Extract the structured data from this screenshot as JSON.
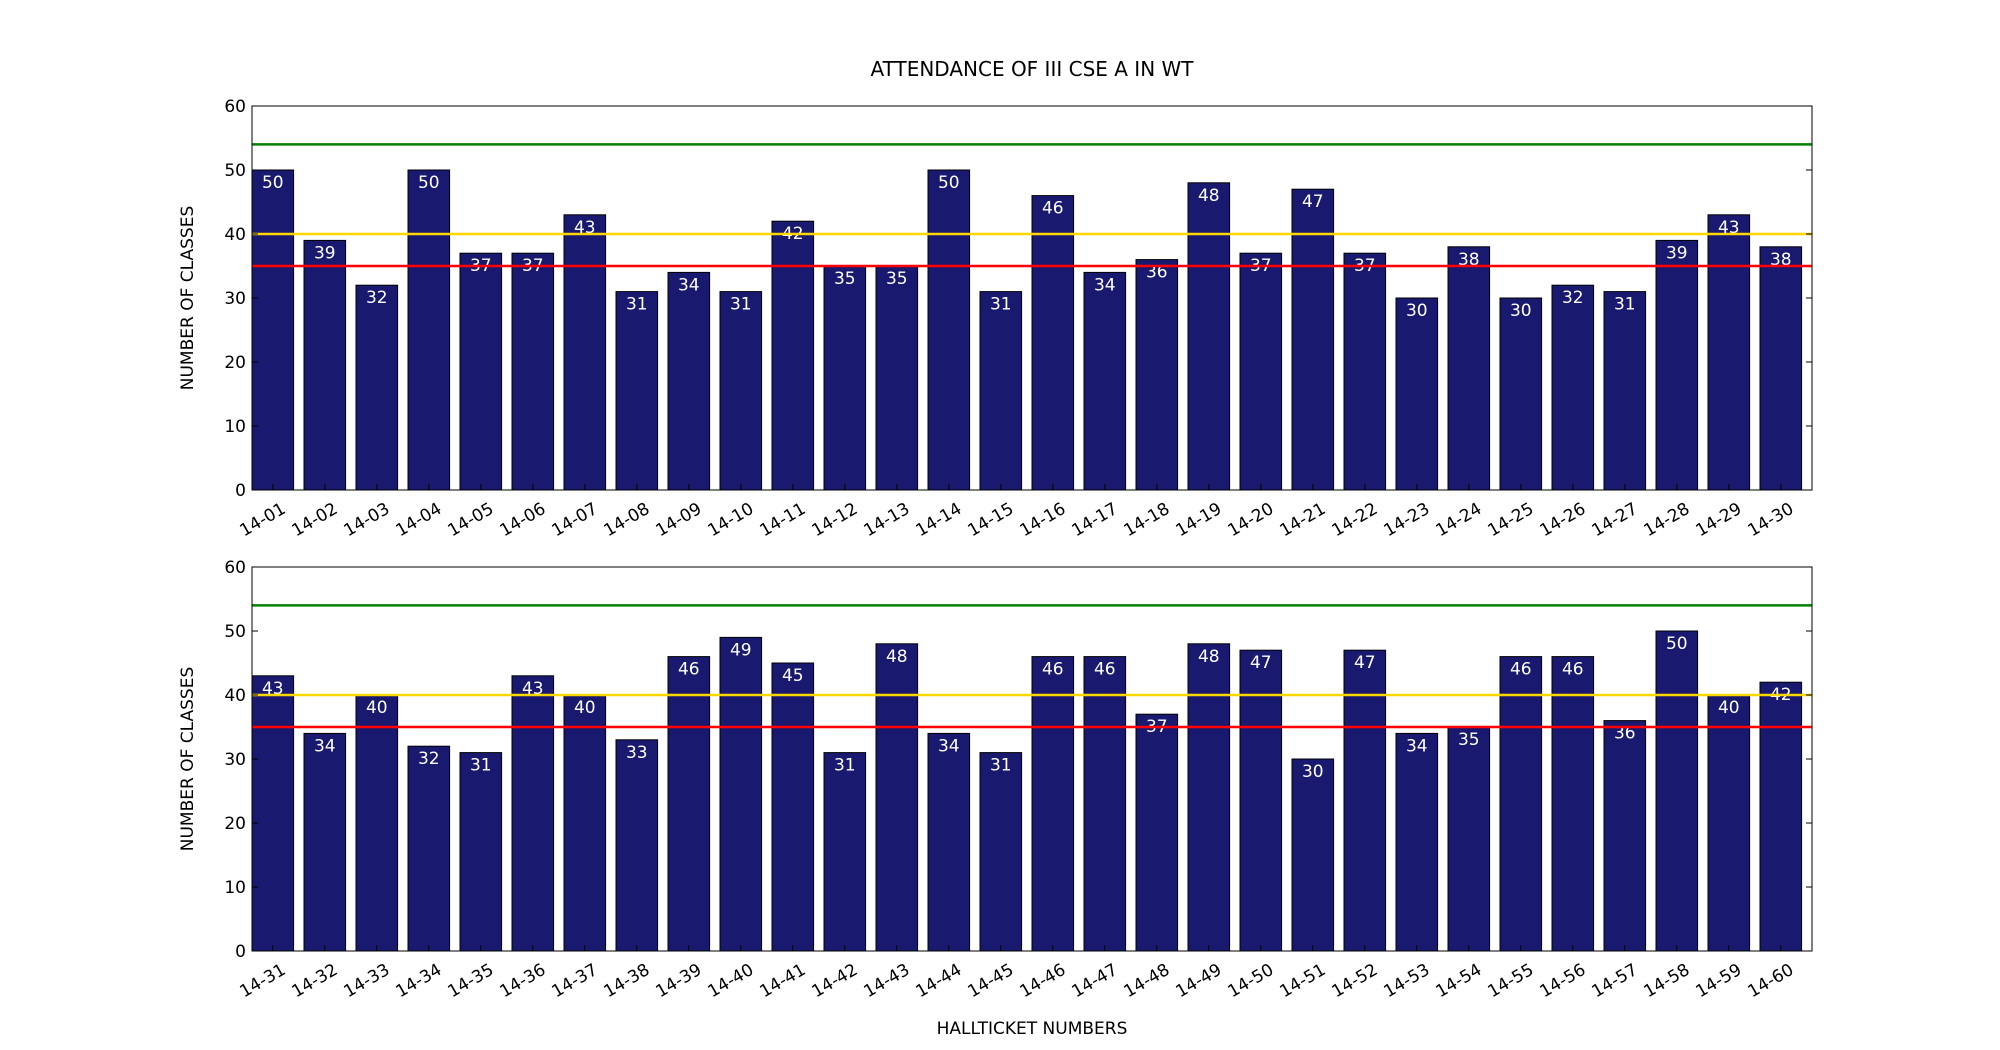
{
  "chart_data": {
    "type": "bar",
    "title": "ATTENDANCE OF III CSE A IN WT",
    "xlabel": "HALLTICKET NUMBERS",
    "colors": {
      "bar": "#191970",
      "bar_edge": "#000000",
      "line_green": "#008000",
      "line_yellow": "#ffd700",
      "line_red": "#ff0000"
    },
    "reference_lines": [
      {
        "y": 54,
        "color": "#008000"
      },
      {
        "y": 40,
        "color": "#ffd700"
      },
      {
        "y": 35,
        "color": "#ff0000"
      }
    ],
    "panels": [
      {
        "ylabel": "NUMBER OF CLASSES",
        "ylim": [
          0,
          60
        ],
        "yticks": [
          0,
          10,
          20,
          30,
          40,
          50,
          60
        ],
        "categories": [
          "14-01",
          "14-02",
          "14-03",
          "14-04",
          "14-05",
          "14-06",
          "14-07",
          "14-08",
          "14-09",
          "14-10",
          "14-11",
          "14-12",
          "14-13",
          "14-14",
          "14-15",
          "14-16",
          "14-17",
          "14-18",
          "14-19",
          "14-20",
          "14-21",
          "14-22",
          "14-23",
          "14-24",
          "14-25",
          "14-26",
          "14-27",
          "14-28",
          "14-29",
          "14-30"
        ],
        "values": [
          50,
          39,
          32,
          50,
          37,
          37,
          43,
          31,
          34,
          31,
          42,
          35,
          35,
          50,
          31,
          46,
          34,
          36,
          48,
          37,
          47,
          37,
          30,
          38,
          30,
          32,
          31,
          39,
          43,
          38
        ]
      },
      {
        "ylabel": "NUMBER OF CLASSES",
        "ylim": [
          0,
          60
        ],
        "yticks": [
          0,
          10,
          20,
          30,
          40,
          50,
          60
        ],
        "categories": [
          "14-31",
          "14-32",
          "14-33",
          "14-34",
          "14-35",
          "14-36",
          "14-37",
          "14-38",
          "14-39",
          "14-40",
          "14-41",
          "14-42",
          "14-43",
          "14-44",
          "14-45",
          "14-46",
          "14-47",
          "14-48",
          "14-49",
          "14-50",
          "14-51",
          "14-52",
          "14-53",
          "14-54",
          "14-55",
          "14-56",
          "14-57",
          "14-58",
          "14-59",
          "14-60"
        ],
        "values": [
          43,
          34,
          40,
          32,
          31,
          43,
          40,
          33,
          46,
          49,
          45,
          31,
          48,
          34,
          31,
          46,
          46,
          37,
          48,
          47,
          30,
          47,
          34,
          35,
          46,
          46,
          36,
          50,
          40,
          42
        ]
      }
    ]
  }
}
